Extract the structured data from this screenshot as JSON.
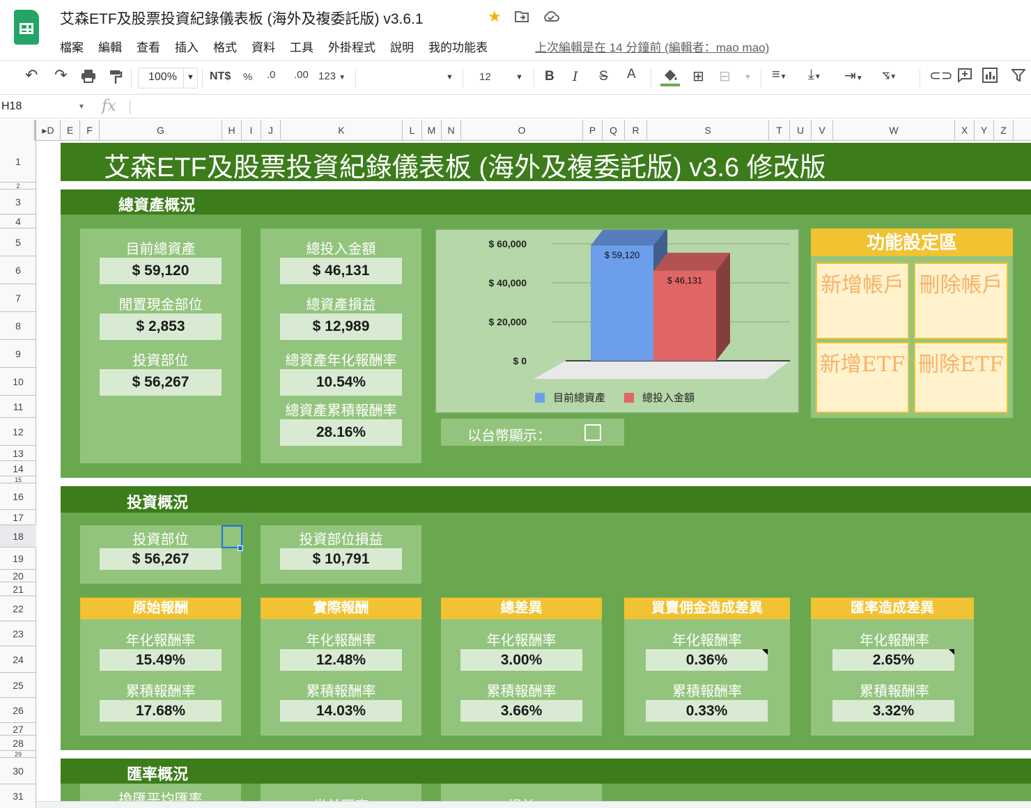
{
  "app": {
    "doc_title": "艾森ETF及股票投資紀錄儀表板 (海外及複委託版) v3.6.1",
    "menu": [
      "檔案",
      "編輯",
      "查看",
      "插入",
      "格式",
      "資料",
      "工具",
      "外掛程式",
      "說明",
      "我的功能表"
    ],
    "last_edit": "上次編輯是在 14 分鐘前 (編輯者：mao mao)"
  },
  "toolbar": {
    "zoom": "100%",
    "currency": "NT$",
    "percent": "%",
    "dec_decrease": ".0",
    "dec_increase": ".00",
    "number_format": "123",
    "font_size": "12",
    "bold": "B",
    "italic": "I",
    "strike": "S",
    "text_color": "A"
  },
  "formula_bar": {
    "cell_ref": "H18",
    "fx": "fx",
    "value": ""
  },
  "columns": [
    "D",
    "E",
    "F",
    "G",
    "H",
    "I",
    "J",
    "K",
    "L",
    "M",
    "N",
    "O",
    "P",
    "Q",
    "R",
    "S",
    "T",
    "U",
    "V",
    "W",
    "X",
    "Y",
    "Z"
  ],
  "rows": [
    "1",
    "2",
    "3",
    "4",
    "5",
    "6",
    "7",
    "8",
    "9",
    "10",
    "11",
    "12",
    "13",
    "14",
    "15",
    "16",
    "17",
    "18",
    "19",
    "20",
    "21",
    "22",
    "23",
    "24",
    "25",
    "26",
    "27",
    "28",
    "29",
    "30",
    "31"
  ],
  "sheet": {
    "main_title": "艾森ETF及股票投資紀錄儀表板 (海外及複委託版) v3.6 修改版",
    "total_assets": {
      "section_title": "總資產概況",
      "current_total_label": "目前總資產",
      "current_total": "$ 59,120",
      "idle_cash_label": "閒置現金部位",
      "idle_cash": "$ 2,853",
      "invest_position_label": "投資部位",
      "invest_position": "$ 56,267",
      "total_invested_label": "總投入金額",
      "total_invested": "$ 46,131",
      "total_pnl_label": "總資產損益",
      "total_pnl": "$ 12,989",
      "annual_return_label": "總資產年化報酬率",
      "annual_return": "10.54%",
      "cumulative_return_label": "總資產累積報酬率",
      "cumulative_return": "28.16%",
      "twd_toggle_label": "以台幣顯示："
    },
    "function_area": {
      "title": "功能設定區",
      "add_account": "新增帳戶",
      "delete_account": "刪除帳戶",
      "add_etf": "新增ETF",
      "delete_etf": "刪除ETF"
    },
    "investment": {
      "section_title": "投資概況",
      "position_label": "投資部位",
      "position": "$ 56,267",
      "position_pnl_label": "投資部位損益",
      "position_pnl": "$ 10,791",
      "annual_label": "年化報酬率",
      "cumulative_label": "累積報酬率",
      "blocks": [
        {
          "title": "原始報酬",
          "annual": "15.49%",
          "cumulative": "17.68%"
        },
        {
          "title": "實際報酬",
          "annual": "12.48%",
          "cumulative": "14.03%"
        },
        {
          "title": "總差異",
          "annual": "3.00%",
          "cumulative": "3.66%"
        },
        {
          "title": "買賣佣金造成差異",
          "annual": "0.36%",
          "cumulative": "0.33%"
        },
        {
          "title": "匯率造成差異",
          "annual": "2.65%",
          "cumulative": "3.32%"
        }
      ]
    },
    "fx": {
      "section_title": "匯率概況",
      "avg_rate_label": "換匯平均匯率",
      "current_rate_label": "當前匯率",
      "pnl_label": "損益"
    }
  },
  "chart_data": {
    "type": "bar",
    "categories": [
      "目前總資產",
      "總投入金額"
    ],
    "values": [
      59120,
      46131
    ],
    "data_labels": [
      "$ 59,120",
      "$ 46,131"
    ],
    "colors": [
      "#6d9eeb",
      "#e06666"
    ],
    "y_ticks": [
      "$ 0",
      "$ 20,000",
      "$ 40,000",
      "$ 60,000"
    ],
    "ylim": [
      0,
      60000
    ],
    "legend": [
      "目前總資產",
      "總投入金額"
    ],
    "legend_position": "bottom",
    "style": "3d",
    "grid": true
  },
  "colors": {
    "dark_green": "#3c7c1b",
    "mid_green": "#6aa84f",
    "light_green": "#93c47d",
    "value_bg": "#d9ead3",
    "gold": "#f1c232",
    "cream": "#fff2cc"
  }
}
